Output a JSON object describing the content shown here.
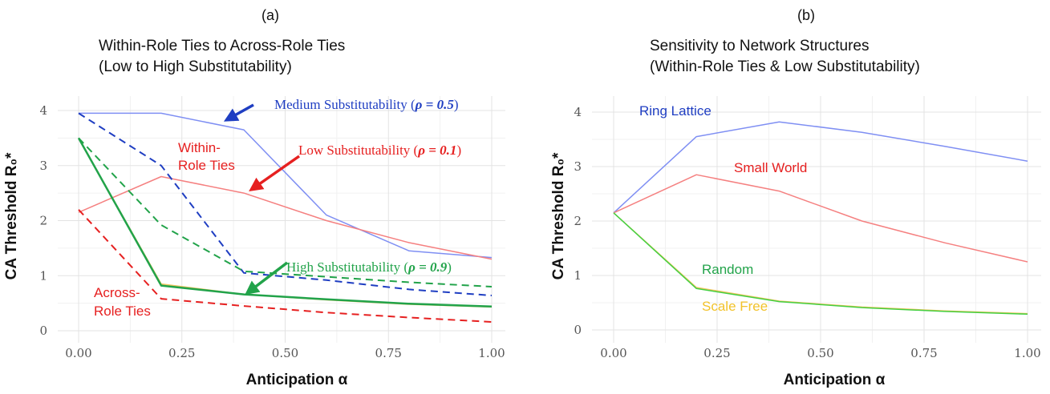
{
  "chart_data": [
    {
      "type": "line",
      "panel": "(a)",
      "title_lines": [
        "Within-Role Ties to Across-Role Ties",
        "(Low to High Substitutability)"
      ],
      "xlabel": "Anticipation α",
      "ylabel": "CA Threshold R₀*",
      "xlim": [
        0,
        1
      ],
      "ylim": [
        0,
        4
      ],
      "xticks": [
        "0.00",
        "0.25",
        "0.50",
        "0.75",
        "1.00"
      ],
      "yticks": [
        "0",
        "1",
        "2",
        "3",
        "4"
      ],
      "grid": true,
      "series": [
        {
          "color": "#7f8ff3",
          "dash": false,
          "width": 1.5,
          "x": [
            0,
            0.2,
            0.4,
            0.6,
            0.8,
            1.0
          ],
          "values": [
            3.95,
            3.95,
            3.65,
            2.1,
            1.45,
            1.33
          ]
        },
        {
          "color": "#f58080",
          "dash": false,
          "width": 1.5,
          "x": [
            0,
            0.2,
            0.4,
            0.6,
            0.8,
            1.0
          ],
          "values": [
            2.15,
            2.8,
            2.5,
            2.0,
            1.6,
            1.3
          ]
        },
        {
          "color": "#f2c45c",
          "dash": false,
          "width": 1.5,
          "x": [
            0,
            0.2,
            0.4,
            0.6,
            0.8,
            1.0
          ],
          "values": [
            3.5,
            0.85,
            0.66,
            0.56,
            0.48,
            0.43
          ]
        },
        {
          "color": "#22a34a",
          "dash": false,
          "width": 2.5,
          "x": [
            0,
            0.2,
            0.4,
            0.6,
            0.8,
            1.0
          ],
          "values": [
            3.5,
            0.82,
            0.66,
            0.57,
            0.49,
            0.44
          ]
        },
        {
          "color": "#1f3ec2",
          "dash": true,
          "width": 2,
          "x": [
            0,
            0.2,
            0.4,
            0.6,
            0.8,
            1.0
          ],
          "values": [
            3.95,
            3.0,
            1.05,
            0.92,
            0.75,
            0.64
          ]
        },
        {
          "color": "#22a34a",
          "dash": true,
          "width": 2,
          "x": [
            0,
            0.2,
            0.4,
            0.6,
            0.8,
            1.0
          ],
          "values": [
            3.5,
            1.92,
            1.08,
            0.98,
            0.88,
            0.8
          ]
        },
        {
          "color": "#e62020",
          "dash": true,
          "width": 2,
          "x": [
            0,
            0.2,
            0.4,
            0.6,
            0.8,
            1.0
          ],
          "values": [
            2.2,
            0.58,
            0.45,
            0.33,
            0.24,
            0.16
          ]
        }
      ],
      "annotations": [
        {
          "id": "medium",
          "text": "Medium Substitutability (",
          "rho": "ρ = 0.5",
          "close": ")",
          "color": "#1f3ec2"
        },
        {
          "id": "low",
          "text": "Low Substitutability (",
          "rho": "ρ = 0.1",
          "close": ")",
          "color": "#e62020"
        },
        {
          "id": "high",
          "text": "High Substitutability (",
          "rho": "ρ = 0.9",
          "close": ")",
          "color": "#22a34a"
        },
        {
          "id": "within",
          "lines": [
            "Within-",
            "Role Ties"
          ],
          "color": "#e62020"
        },
        {
          "id": "across",
          "lines": [
            "Across-",
            "Role Ties"
          ],
          "color": "#e62020"
        }
      ],
      "arrows": [
        {
          "color": "#1f3ec2"
        },
        {
          "color": "#e62020"
        },
        {
          "color": "#22a34a"
        }
      ]
    },
    {
      "type": "line",
      "panel": "(b)",
      "title_lines": [
        "Sensitivity to Network Structures",
        "(Within-Role Ties & Low Substitutability)"
      ],
      "xlabel": "Anticipation α",
      "ylabel": "CA Threshold R₀*",
      "xlim": [
        0,
        1
      ],
      "ylim": [
        0,
        4
      ],
      "xticks": [
        "0.00",
        "0.25",
        "0.50",
        "0.75",
        "1.00"
      ],
      "yticks": [
        "0",
        "1",
        "2",
        "3",
        "4"
      ],
      "grid": true,
      "series": [
        {
          "name": "Ring Lattice",
          "color": "#7f8ff3",
          "dash": false,
          "width": 1.5,
          "x": [
            0,
            0.2,
            0.4,
            0.6,
            0.8,
            1.0
          ],
          "values": [
            2.15,
            3.55,
            3.82,
            3.63,
            3.37,
            3.1
          ]
        },
        {
          "name": "Small World",
          "color": "#f58080",
          "dash": false,
          "width": 1.5,
          "x": [
            0,
            0.2,
            0.4,
            0.6,
            0.8,
            1.0
          ],
          "values": [
            2.15,
            2.85,
            2.55,
            2.0,
            1.6,
            1.25
          ]
        },
        {
          "name": "Scale Free",
          "color": "#f2c45c",
          "dash": false,
          "width": 1.5,
          "x": [
            0,
            0.2,
            0.4,
            0.6,
            0.8,
            1.0
          ],
          "values": [
            2.15,
            0.78,
            0.53,
            0.42,
            0.35,
            0.3
          ]
        },
        {
          "name": "Random",
          "color": "#44d044",
          "dash": false,
          "width": 1.5,
          "x": [
            0,
            0.2,
            0.4,
            0.6,
            0.8,
            1.0
          ],
          "values": [
            2.15,
            0.76,
            0.52,
            0.41,
            0.34,
            0.29
          ]
        }
      ],
      "labels": [
        {
          "text": "Ring Lattice",
          "color": "#1f3ec2"
        },
        {
          "text": "Small World",
          "color": "#e62020"
        },
        {
          "text": "Random",
          "color": "#22a34a"
        },
        {
          "text": "Scale Free",
          "color": "#f2c22a"
        }
      ]
    }
  ]
}
